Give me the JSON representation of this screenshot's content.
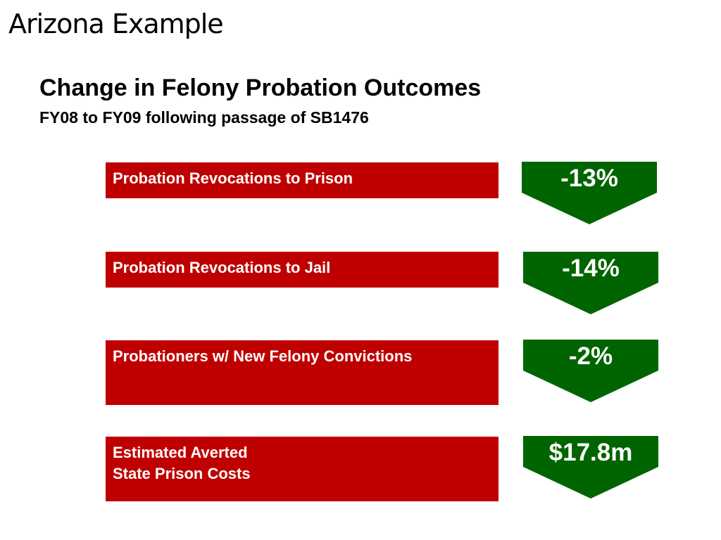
{
  "slide": {
    "title": "Arizona Example",
    "heading": "Change in Felony Probation Outcomes",
    "subheading": "FY08 to FY09 following passage of SB1476"
  },
  "outcomes": [
    {
      "label": "Probation Revocations to Prison",
      "change": "-13%"
    },
    {
      "label": "Probation Revocations to Jail",
      "change": "-14%"
    },
    {
      "label": "Probationers w/ New Felony Convictions",
      "change": "-2%"
    },
    {
      "label_line1": "Estimated Averted",
      "label_line2": "State Prison Costs",
      "change": "$17.8m"
    }
  ],
  "colors": {
    "bar_red": "#bf0000",
    "arrow_green": "#006400",
    "text_white": "#ffffff"
  },
  "icons": [
    "down-arrow-icon"
  ]
}
